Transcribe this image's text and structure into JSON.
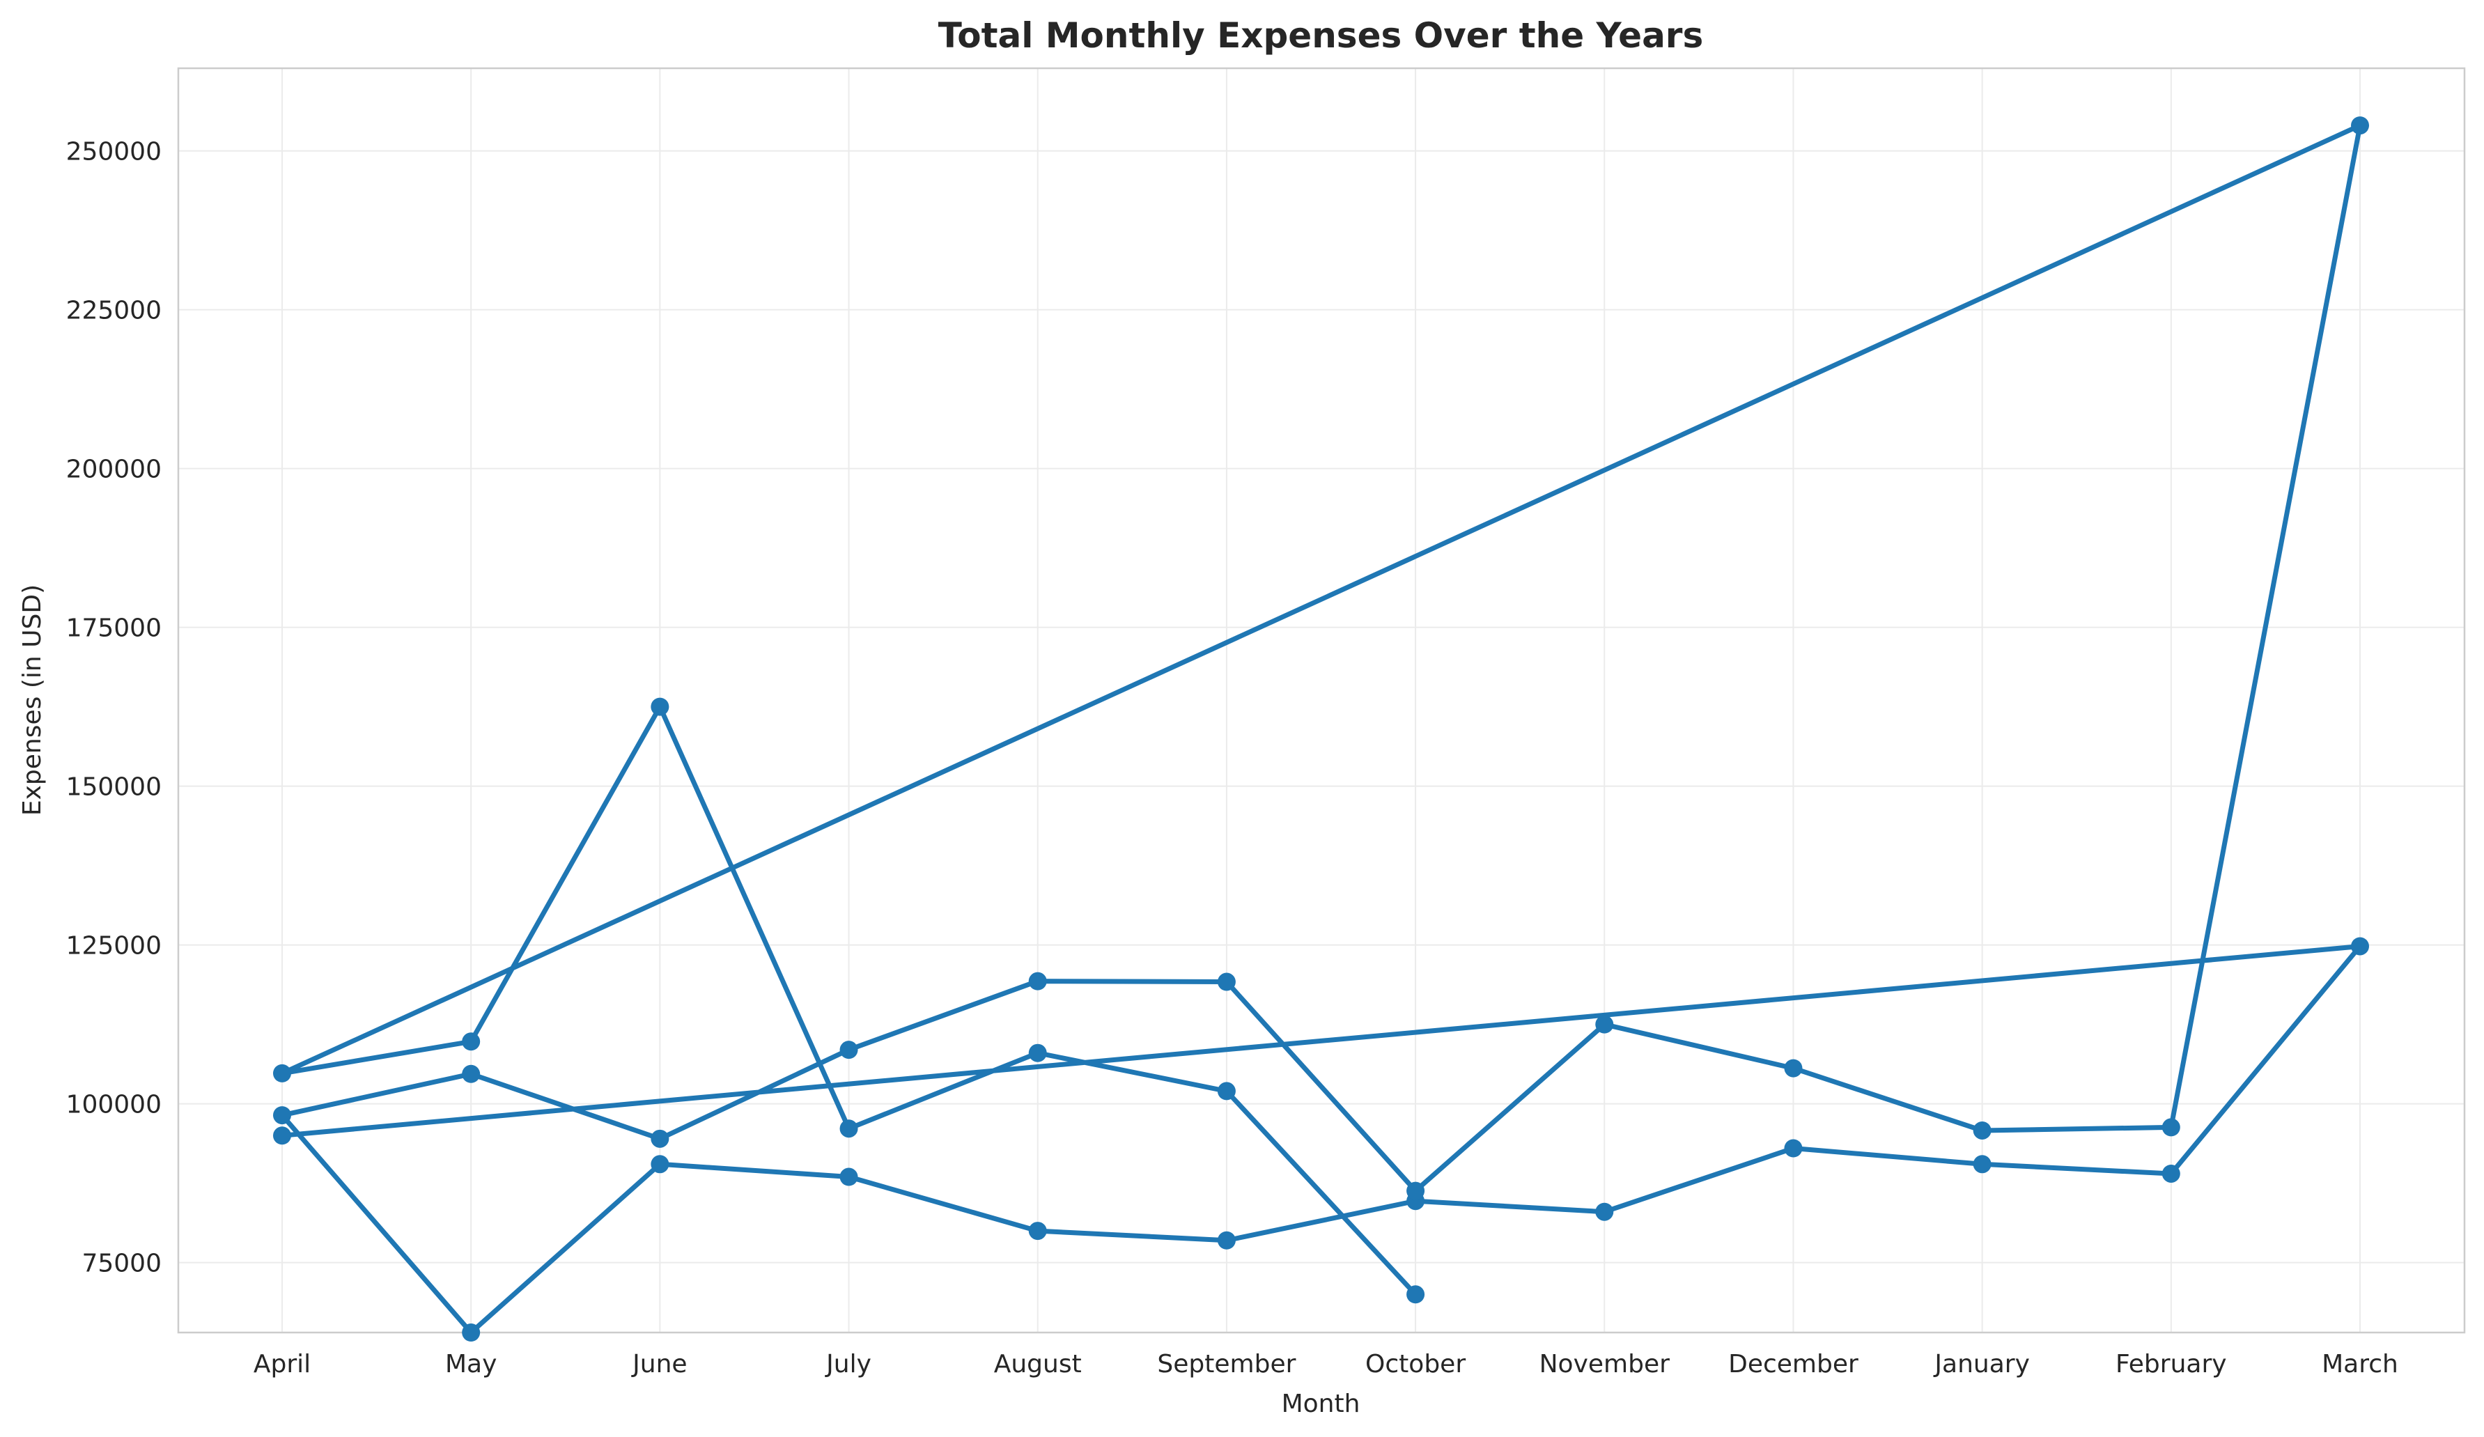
{
  "chart_data": {
    "type": "line",
    "title": "Total Monthly Expenses Over the Years",
    "xlabel": "Month",
    "ylabel": "Expenses (in USD)",
    "categories": [
      "April",
      "May",
      "June",
      "July",
      "August",
      "September",
      "October",
      "November",
      "December",
      "January",
      "February",
      "March"
    ],
    "ylim": [
      64000,
      263000
    ],
    "yticks": [
      75000,
      100000,
      125000,
      150000,
      175000,
      200000,
      225000,
      250000
    ],
    "grid": true,
    "legend": "none",
    "marker": "circle",
    "color": "#1f77b4",
    "path": [
      {
        "x": "April",
        "y": 95000
      },
      {
        "x": "March",
        "y": 124800
      },
      {
        "x": "February",
        "y": 89000
      },
      {
        "x": "January",
        "y": 90500
      },
      {
        "x": "December",
        "y": 93000
      },
      {
        "x": "November",
        "y": 83000
      },
      {
        "x": "October",
        "y": 84700
      },
      {
        "x": "September",
        "y": 78500
      },
      {
        "x": "August",
        "y": 80000
      },
      {
        "x": "July",
        "y": 88500
      },
      {
        "x": "June",
        "y": 90500
      },
      {
        "x": "May",
        "y": 64000
      },
      {
        "x": "April",
        "y": 98200
      },
      {
        "x": "May",
        "y": 104700
      },
      {
        "x": "June",
        "y": 94500
      },
      {
        "x": "July",
        "y": 108500
      },
      {
        "x": "August",
        "y": 119300
      },
      {
        "x": "September",
        "y": 119200
      },
      {
        "x": "October",
        "y": 86300
      },
      {
        "x": "November",
        "y": 112500
      },
      {
        "x": "December",
        "y": 105600
      },
      {
        "x": "January",
        "y": 95800
      },
      {
        "x": "February",
        "y": 96300
      },
      {
        "x": "March",
        "y": 254000
      },
      {
        "x": "April",
        "y": 104800
      },
      {
        "x": "May",
        "y": 109800
      },
      {
        "x": "June",
        "y": 162500
      },
      {
        "x": "July",
        "y": 96100
      },
      {
        "x": "August",
        "y": 108000
      },
      {
        "x": "September",
        "y": 102000
      },
      {
        "x": "October",
        "y": 70000
      }
    ]
  }
}
